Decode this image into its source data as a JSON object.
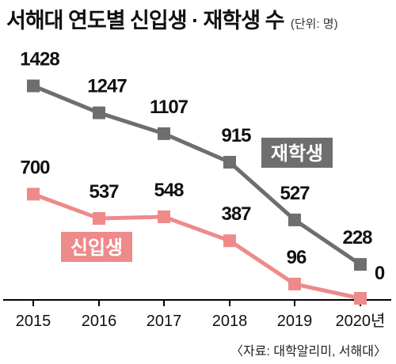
{
  "title": "서해대 연도별 신입생 · 재학생 수",
  "unit_note": "(단위: 명)",
  "source": "〈자료: 대학알리미, 서해대〉",
  "colors": {
    "enrolled": "#6e6e6e",
    "freshmen": "#ee8a8a",
    "axis": "#000000",
    "text": "#111111"
  },
  "chart_data": {
    "type": "line",
    "categories": [
      "2015",
      "2016",
      "2017",
      "2018",
      "2019",
      "2020년"
    ],
    "series": [
      {
        "name": "재학생",
        "values": [
          1428,
          1247,
          1107,
          915,
          527,
          228
        ]
      },
      {
        "name": "신입생",
        "values": [
          700,
          537,
          548,
          387,
          96,
          0
        ]
      }
    ],
    "ylim": [
      0,
      1500
    ],
    "grid": false,
    "legend": "labels placed on the lines"
  }
}
